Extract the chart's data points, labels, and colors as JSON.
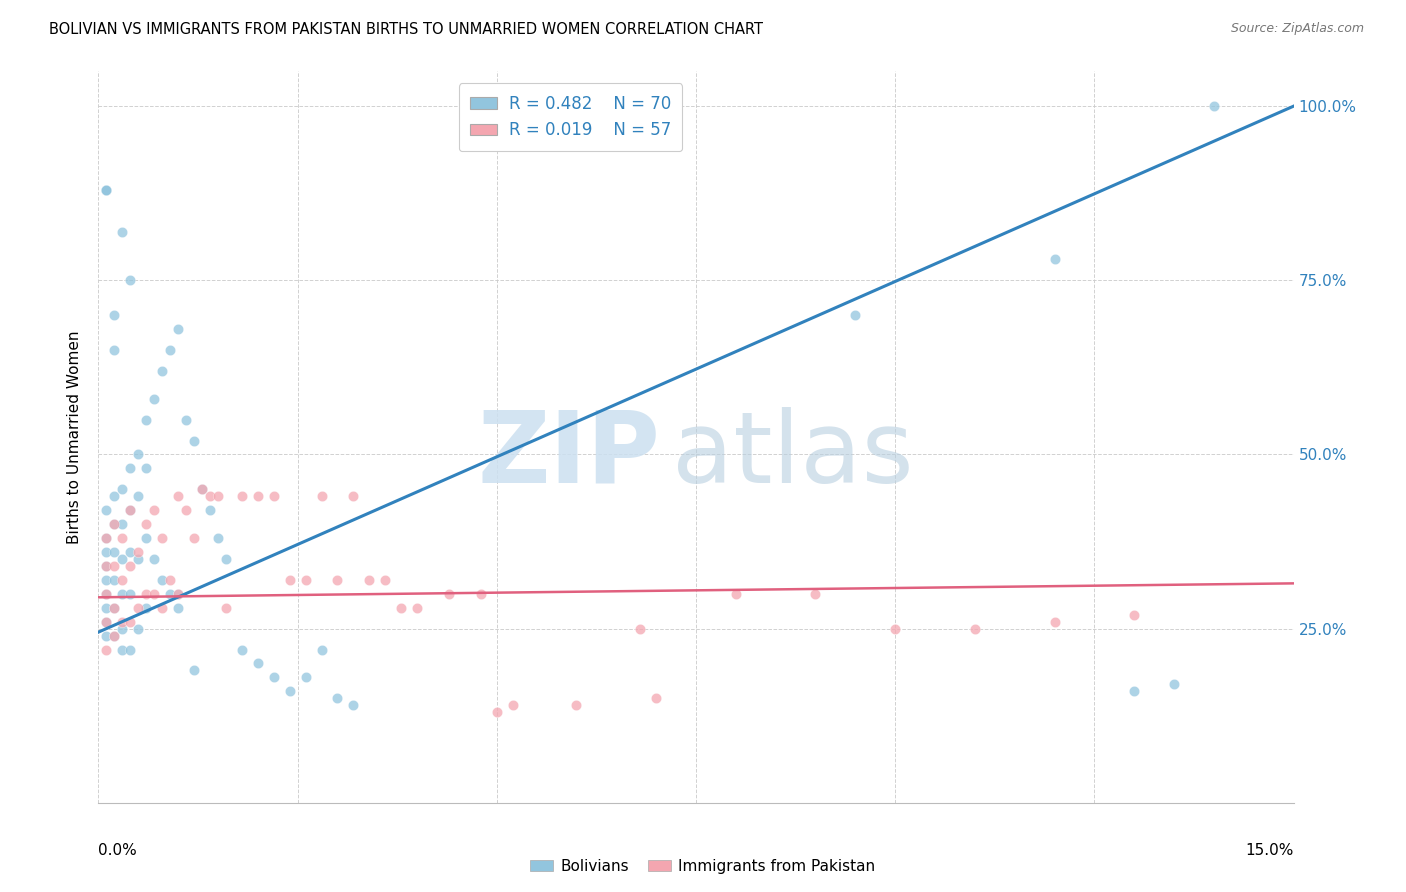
{
  "title": "BOLIVIAN VS IMMIGRANTS FROM PAKISTAN BIRTHS TO UNMARRIED WOMEN CORRELATION CHART",
  "source": "Source: ZipAtlas.com",
  "ylabel": "Births to Unmarried Women",
  "ytick_vals": [
    0.25,
    0.5,
    0.75,
    1.0
  ],
  "ytick_labels": [
    "25.0%",
    "50.0%",
    "75.0%",
    "100.0%"
  ],
  "xmin": 0.0,
  "xmax": 0.15,
  "ymin": 0.0,
  "ymax": 1.05,
  "blue_color": "#92c5de",
  "pink_color": "#f4a6b0",
  "blue_line_color": "#3182bd",
  "pink_line_color": "#e0607e",
  "blue_line_x0": 0.0,
  "blue_line_y0": 0.245,
  "blue_line_x1": 0.15,
  "blue_line_y1": 1.0,
  "pink_line_x0": 0.0,
  "pink_line_y0": 0.295,
  "pink_line_x1": 0.15,
  "pink_line_y1": 0.315,
  "bolivians_x": [
    0.001,
    0.001,
    0.001,
    0.001,
    0.001,
    0.001,
    0.001,
    0.001,
    0.001,
    0.002,
    0.002,
    0.002,
    0.002,
    0.002,
    0.002,
    0.003,
    0.003,
    0.003,
    0.003,
    0.003,
    0.003,
    0.004,
    0.004,
    0.004,
    0.004,
    0.004,
    0.005,
    0.005,
    0.005,
    0.005,
    0.006,
    0.006,
    0.006,
    0.006,
    0.007,
    0.007,
    0.008,
    0.008,
    0.009,
    0.009,
    0.01,
    0.01,
    0.011,
    0.012,
    0.013,
    0.014,
    0.015,
    0.016,
    0.018,
    0.02,
    0.022,
    0.024,
    0.026,
    0.028,
    0.03,
    0.032,
    0.001,
    0.001,
    0.001,
    0.002,
    0.002,
    0.003,
    0.004,
    0.01,
    0.012,
    0.095,
    0.12,
    0.13,
    0.135,
    0.14
  ],
  "bolivians_y": [
    0.42,
    0.38,
    0.36,
    0.34,
    0.32,
    0.3,
    0.28,
    0.26,
    0.24,
    0.44,
    0.4,
    0.36,
    0.32,
    0.28,
    0.24,
    0.45,
    0.4,
    0.35,
    0.3,
    0.25,
    0.22,
    0.48,
    0.42,
    0.36,
    0.3,
    0.22,
    0.5,
    0.44,
    0.35,
    0.25,
    0.55,
    0.48,
    0.38,
    0.28,
    0.58,
    0.35,
    0.62,
    0.32,
    0.65,
    0.3,
    0.68,
    0.28,
    0.55,
    0.52,
    0.45,
    0.42,
    0.38,
    0.35,
    0.22,
    0.2,
    0.18,
    0.16,
    0.18,
    0.22,
    0.15,
    0.14,
    0.88,
    0.88,
    0.88,
    0.7,
    0.65,
    0.82,
    0.75,
    0.3,
    0.19,
    0.7,
    0.78,
    0.16,
    0.17,
    1.0
  ],
  "pakistan_x": [
    0.001,
    0.001,
    0.001,
    0.001,
    0.001,
    0.002,
    0.002,
    0.002,
    0.002,
    0.003,
    0.003,
    0.003,
    0.004,
    0.004,
    0.004,
    0.005,
    0.005,
    0.006,
    0.006,
    0.007,
    0.007,
    0.008,
    0.008,
    0.009,
    0.01,
    0.01,
    0.011,
    0.012,
    0.013,
    0.014,
    0.015,
    0.016,
    0.018,
    0.02,
    0.022,
    0.024,
    0.026,
    0.028,
    0.03,
    0.032,
    0.034,
    0.036,
    0.038,
    0.04,
    0.044,
    0.048,
    0.052,
    0.06,
    0.07,
    0.08,
    0.09,
    0.1,
    0.11,
    0.12,
    0.13,
    0.068,
    0.05
  ],
  "pakistan_y": [
    0.38,
    0.34,
    0.3,
    0.26,
    0.22,
    0.4,
    0.34,
    0.28,
    0.24,
    0.38,
    0.32,
    0.26,
    0.42,
    0.34,
    0.26,
    0.36,
    0.28,
    0.4,
    0.3,
    0.42,
    0.3,
    0.38,
    0.28,
    0.32,
    0.44,
    0.3,
    0.42,
    0.38,
    0.45,
    0.44,
    0.44,
    0.28,
    0.44,
    0.44,
    0.44,
    0.32,
    0.32,
    0.44,
    0.32,
    0.44,
    0.32,
    0.32,
    0.28,
    0.28,
    0.3,
    0.3,
    0.14,
    0.14,
    0.15,
    0.3,
    0.3,
    0.25,
    0.25,
    0.26,
    0.27,
    0.25,
    0.13
  ]
}
